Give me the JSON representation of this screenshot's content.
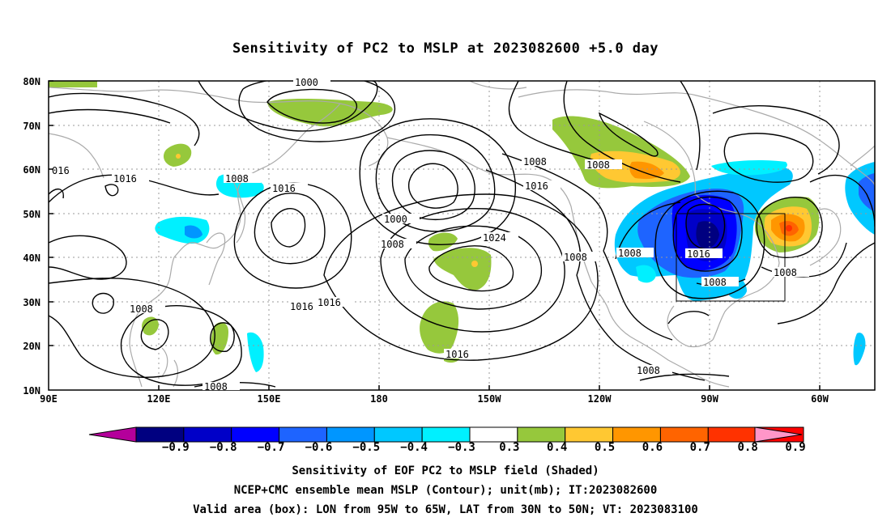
{
  "title": "Sensitivity of PC2 to MSLP at 2023082600 +5.0 day",
  "map": {
    "lat_ticks": [
      "80N",
      "70N",
      "60N",
      "50N",
      "40N",
      "30N",
      "20N",
      "10N"
    ],
    "lon_ticks": [
      "90E",
      "120E",
      "150E",
      "180",
      "150W",
      "120W",
      "90W",
      "60W"
    ],
    "contour_labels": [
      {
        "text": "1000"
      },
      {
        "text": "016"
      },
      {
        "text": "1016"
      },
      {
        "text": "1008"
      },
      {
        "text": "1016"
      },
      {
        "text": "1008"
      },
      {
        "text": "1008"
      },
      {
        "text": "1016"
      },
      {
        "text": "1000"
      },
      {
        "text": "1008"
      },
      {
        "text": "1024"
      },
      {
        "text": "1008"
      },
      {
        "text": "1008"
      },
      {
        "text": "1016"
      },
      {
        "text": "1008"
      },
      {
        "text": "1008"
      },
      {
        "text": "1016"
      },
      {
        "text": "1016"
      },
      {
        "text": "1008"
      },
      {
        "text": "1016"
      },
      {
        "text": "1008"
      },
      {
        "text": "1008"
      }
    ],
    "valid_box": {
      "lon_from": "95W",
      "lon_to": "65W",
      "lat_from": "30N",
      "lat_to": "50N"
    }
  },
  "colorbar": {
    "colors": [
      "#000080",
      "#0000c8",
      "#0000ff",
      "#1e64ff",
      "#0096ff",
      "#00c8ff",
      "#00f0ff",
      "#ffffff",
      "#96c83c",
      "#ffc832",
      "#ff9600",
      "#ff6400",
      "#ff3200",
      "#ff0000"
    ],
    "low_triangle": "#b4009b",
    "high_triangle": "#ff96c8",
    "labels": [
      "−0.9",
      "−0.8",
      "−0.7",
      "−0.6",
      "−0.5",
      "−0.4",
      "−0.3",
      "0.3",
      "0.4",
      "0.5",
      "0.6",
      "0.7",
      "0.8",
      "0.9"
    ]
  },
  "captions": {
    "line1": "Sensitivity of EOF PC2 to MSLP field (Shaded)",
    "line2": "NCEP+CMC ensemble mean MSLP (Contour); unit(mb); IT:2023082600",
    "line3": "Valid area (box): LON from 95W to 65W, LAT from 30N to 50N; VT: 2023083100"
  }
}
